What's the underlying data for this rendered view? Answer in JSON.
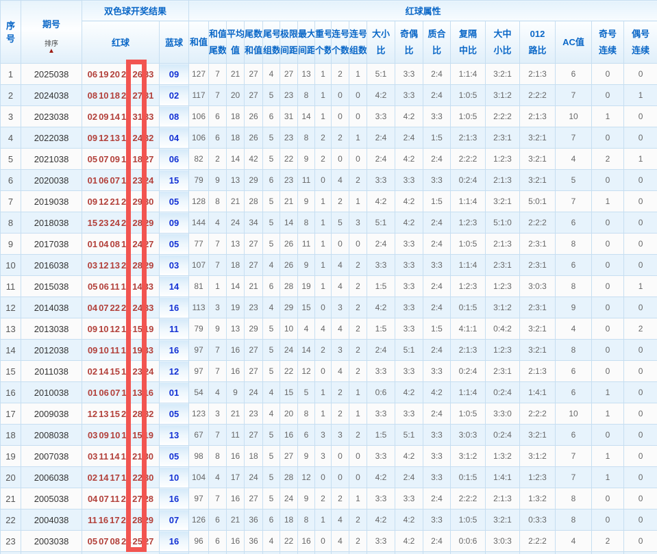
{
  "header": {
    "serial_lines": [
      "序",
      "号"
    ],
    "period_title": "期号",
    "sort_label": "排序",
    "sort_icon": "▲",
    "group_result": "双色球开奖结果",
    "group_attrs": "红球属性",
    "col_red": "红球",
    "col_blue": "蓝球",
    "attr_cols": [
      {
        "key": "sum",
        "l1": "和值",
        "l2": ""
      },
      {
        "key": "sum-tail",
        "l1": "和值",
        "l2": "尾数"
      },
      {
        "key": "average",
        "l1": "平均",
        "l2": "值"
      },
      {
        "key": "tail-sum",
        "l1": "尾数",
        "l2": "和值"
      },
      {
        "key": "tail-groups",
        "l1": "尾号",
        "l2": "组数"
      },
      {
        "key": "limit-span",
        "l1": "极限",
        "l2": "间距"
      },
      {
        "key": "max-gap",
        "l1": "最大",
        "l2": "间距"
      },
      {
        "key": "repeat-count",
        "l1": "重号",
        "l2": "个数"
      },
      {
        "key": "consecutive-count",
        "l1": "连号",
        "l2": "个数"
      },
      {
        "key": "consecutive-groups",
        "l1": "连号",
        "l2": "组数"
      },
      {
        "key": "big-small-ratio",
        "l1": "大小",
        "l2": "比"
      },
      {
        "key": "odd-even-ratio",
        "l1": "奇偶",
        "l2": "比"
      },
      {
        "key": "prime-composite-ratio",
        "l1": "质合",
        "l2": "比"
      },
      {
        "key": "fu-ge-zhong-ratio",
        "l1": "复隔",
        "l2": "中比"
      },
      {
        "key": "big-mid-small-ratio",
        "l1": "大中",
        "l2": "小比"
      },
      {
        "key": "012-road-ratio",
        "l1": "012",
        "l2": "路比"
      },
      {
        "key": "ac-value",
        "l1": "AC值",
        "l2": ""
      },
      {
        "key": "odd-consecutive",
        "l1": "奇号",
        "l2": "连续"
      },
      {
        "key": "even-consecutive",
        "l1": "偶号",
        "l2": "连续"
      }
    ]
  },
  "highlight_color": "#f25450",
  "rows": [
    {
      "seq": "1",
      "period": "2025038",
      "reds": [
        "06",
        "19",
        "20",
        "23",
        "26",
        "33"
      ],
      "blue": "09",
      "vals": [
        "127",
        "7",
        "21",
        "27",
        "4",
        "27",
        "13",
        "1",
        "2",
        "1",
        "5:1",
        "3:3",
        "2:4",
        "1:1:4",
        "3:2:1",
        "2:1:3",
        "6",
        "0",
        "0"
      ]
    },
    {
      "seq": "2",
      "period": "2024038",
      "reds": [
        "08",
        "10",
        "18",
        "23",
        "27",
        "31"
      ],
      "blue": "02",
      "vals": [
        "117",
        "7",
        "20",
        "27",
        "5",
        "23",
        "8",
        "1",
        "0",
        "0",
        "4:2",
        "3:3",
        "2:4",
        "1:0:5",
        "3:1:2",
        "2:2:2",
        "7",
        "0",
        "1"
      ]
    },
    {
      "seq": "3",
      "period": "2023038",
      "reds": [
        "02",
        "09",
        "14",
        "17",
        "31",
        "33"
      ],
      "blue": "08",
      "vals": [
        "106",
        "6",
        "18",
        "26",
        "6",
        "31",
        "14",
        "1",
        "0",
        "0",
        "3:3",
        "4:2",
        "3:3",
        "1:0:5",
        "2:2:2",
        "2:1:3",
        "10",
        "1",
        "0"
      ]
    },
    {
      "seq": "4",
      "period": "2022038",
      "reds": [
        "09",
        "12",
        "13",
        "16",
        "24",
        "32"
      ],
      "blue": "04",
      "vals": [
        "106",
        "6",
        "18",
        "26",
        "5",
        "23",
        "8",
        "2",
        "2",
        "1",
        "2:4",
        "2:4",
        "1:5",
        "2:1:3",
        "2:3:1",
        "3:2:1",
        "7",
        "0",
        "0"
      ]
    },
    {
      "seq": "5",
      "period": "2021038",
      "reds": [
        "05",
        "07",
        "09",
        "16",
        "18",
        "27"
      ],
      "blue": "06",
      "vals": [
        "82",
        "2",
        "14",
        "42",
        "5",
        "22",
        "9",
        "2",
        "0",
        "0",
        "2:4",
        "4:2",
        "2:4",
        "2:2:2",
        "1:2:3",
        "3:2:1",
        "4",
        "2",
        "1"
      ]
    },
    {
      "seq": "6",
      "period": "2020038",
      "reds": [
        "01",
        "06",
        "07",
        "18",
        "23",
        "24"
      ],
      "blue": "15",
      "vals": [
        "79",
        "9",
        "13",
        "29",
        "6",
        "23",
        "11",
        "0",
        "4",
        "2",
        "3:3",
        "3:3",
        "3:3",
        "0:2:4",
        "2:1:3",
        "3:2:1",
        "5",
        "0",
        "0"
      ]
    },
    {
      "seq": "7",
      "period": "2019038",
      "reds": [
        "09",
        "12",
        "21",
        "27",
        "29",
        "30"
      ],
      "blue": "05",
      "vals": [
        "128",
        "8",
        "21",
        "28",
        "5",
        "21",
        "9",
        "1",
        "2",
        "1",
        "4:2",
        "4:2",
        "1:5",
        "1:1:4",
        "3:2:1",
        "5:0:1",
        "7",
        "1",
        "0"
      ]
    },
    {
      "seq": "8",
      "period": "2018038",
      "reds": [
        "15",
        "23",
        "24",
        "25",
        "28",
        "29"
      ],
      "blue": "09",
      "vals": [
        "144",
        "4",
        "24",
        "34",
        "5",
        "14",
        "8",
        "1",
        "5",
        "3",
        "5:1",
        "4:2",
        "2:4",
        "1:2:3",
        "5:1:0",
        "2:2:2",
        "6",
        "0",
        "0"
      ]
    },
    {
      "seq": "9",
      "period": "2017038",
      "reds": [
        "01",
        "04",
        "08",
        "13",
        "24",
        "27"
      ],
      "blue": "05",
      "vals": [
        "77",
        "7",
        "13",
        "27",
        "5",
        "26",
        "11",
        "1",
        "0",
        "0",
        "2:4",
        "3:3",
        "2:4",
        "1:0:5",
        "2:1:3",
        "2:3:1",
        "8",
        "0",
        "0"
      ]
    },
    {
      "seq": "10",
      "period": "2016038",
      "reds": [
        "03",
        "12",
        "13",
        "22",
        "28",
        "29"
      ],
      "blue": "03",
      "vals": [
        "107",
        "7",
        "18",
        "27",
        "4",
        "26",
        "9",
        "1",
        "4",
        "2",
        "3:3",
        "3:3",
        "3:3",
        "1:1:4",
        "2:3:1",
        "2:3:1",
        "6",
        "0",
        "0"
      ]
    },
    {
      "seq": "11",
      "period": "2015038",
      "reds": [
        "05",
        "06",
        "11",
        "12",
        "14",
        "33"
      ],
      "blue": "14",
      "vals": [
        "81",
        "1",
        "14",
        "21",
        "6",
        "28",
        "19",
        "1",
        "4",
        "2",
        "1:5",
        "3:3",
        "2:4",
        "1:2:3",
        "1:2:3",
        "3:0:3",
        "8",
        "0",
        "1"
      ]
    },
    {
      "seq": "12",
      "period": "2014038",
      "reds": [
        "04",
        "07",
        "22",
        "23",
        "24",
        "33"
      ],
      "blue": "16",
      "vals": [
        "113",
        "3",
        "19",
        "23",
        "4",
        "29",
        "15",
        "0",
        "3",
        "2",
        "4:2",
        "3:3",
        "2:4",
        "0:1:5",
        "3:1:2",
        "2:3:1",
        "9",
        "0",
        "0"
      ]
    },
    {
      "seq": "13",
      "period": "2013038",
      "reds": [
        "09",
        "10",
        "12",
        "14",
        "15",
        "19"
      ],
      "blue": "11",
      "vals": [
        "79",
        "9",
        "13",
        "29",
        "5",
        "10",
        "4",
        "4",
        "4",
        "2",
        "1:5",
        "3:3",
        "1:5",
        "4:1:1",
        "0:4:2",
        "3:2:1",
        "4",
        "0",
        "2"
      ]
    },
    {
      "seq": "14",
      "period": "2012038",
      "reds": [
        "09",
        "10",
        "11",
        "15",
        "19",
        "33"
      ],
      "blue": "16",
      "vals": [
        "97",
        "7",
        "16",
        "27",
        "5",
        "24",
        "14",
        "2",
        "3",
        "2",
        "2:4",
        "5:1",
        "2:4",
        "2:1:3",
        "1:2:3",
        "3:2:1",
        "8",
        "0",
        "0"
      ]
    },
    {
      "seq": "15",
      "period": "2011038",
      "reds": [
        "02",
        "14",
        "15",
        "19",
        "23",
        "24"
      ],
      "blue": "12",
      "vals": [
        "97",
        "7",
        "16",
        "27",
        "5",
        "22",
        "12",
        "0",
        "4",
        "2",
        "3:3",
        "3:3",
        "3:3",
        "0:2:4",
        "2:3:1",
        "2:1:3",
        "6",
        "0",
        "0"
      ]
    },
    {
      "seq": "16",
      "period": "2010038",
      "reds": [
        "01",
        "06",
        "07",
        "11",
        "13",
        "16"
      ],
      "blue": "01",
      "vals": [
        "54",
        "4",
        "9",
        "24",
        "4",
        "15",
        "5",
        "1",
        "2",
        "1",
        "0:6",
        "4:2",
        "4:2",
        "1:1:4",
        "0:2:4",
        "1:4:1",
        "6",
        "1",
        "0"
      ]
    },
    {
      "seq": "17",
      "period": "2009038",
      "reds": [
        "12",
        "13",
        "15",
        "23",
        "28",
        "32"
      ],
      "blue": "05",
      "vals": [
        "123",
        "3",
        "21",
        "23",
        "4",
        "20",
        "8",
        "1",
        "2",
        "1",
        "3:3",
        "3:3",
        "2:4",
        "1:0:5",
        "3:3:0",
        "2:2:2",
        "10",
        "1",
        "0"
      ]
    },
    {
      "seq": "18",
      "period": "2008038",
      "reds": [
        "03",
        "09",
        "10",
        "11",
        "15",
        "19"
      ],
      "blue": "13",
      "vals": [
        "67",
        "7",
        "11",
        "27",
        "5",
        "16",
        "6",
        "3",
        "3",
        "2",
        "1:5",
        "5:1",
        "3:3",
        "3:0:3",
        "0:2:4",
        "3:2:1",
        "6",
        "0",
        "0"
      ]
    },
    {
      "seq": "19",
      "period": "2007038",
      "reds": [
        "03",
        "11",
        "14",
        "19",
        "21",
        "30"
      ],
      "blue": "05",
      "vals": [
        "98",
        "8",
        "16",
        "18",
        "5",
        "27",
        "9",
        "3",
        "0",
        "0",
        "3:3",
        "4:2",
        "3:3",
        "3:1:2",
        "1:3:2",
        "3:1:2",
        "7",
        "1",
        "0"
      ]
    },
    {
      "seq": "20",
      "period": "2006038",
      "reds": [
        "02",
        "14",
        "17",
        "19",
        "22",
        "30"
      ],
      "blue": "10",
      "vals": [
        "104",
        "4",
        "17",
        "24",
        "5",
        "28",
        "12",
        "0",
        "0",
        "0",
        "4:2",
        "2:4",
        "3:3",
        "0:1:5",
        "1:4:1",
        "1:2:3",
        "7",
        "1",
        "0"
      ]
    },
    {
      "seq": "21",
      "period": "2005038",
      "reds": [
        "04",
        "07",
        "11",
        "20",
        "27",
        "28"
      ],
      "blue": "16",
      "vals": [
        "97",
        "7",
        "16",
        "27",
        "5",
        "24",
        "9",
        "2",
        "2",
        "1",
        "3:3",
        "3:3",
        "2:4",
        "2:2:2",
        "2:1:3",
        "1:3:2",
        "8",
        "0",
        "0"
      ]
    },
    {
      "seq": "22",
      "period": "2004038",
      "reds": [
        "11",
        "16",
        "17",
        "25",
        "28",
        "29"
      ],
      "blue": "07",
      "vals": [
        "126",
        "6",
        "21",
        "36",
        "6",
        "18",
        "8",
        "1",
        "4",
        "2",
        "4:2",
        "4:2",
        "3:3",
        "1:0:5",
        "3:2:1",
        "0:3:3",
        "8",
        "0",
        "0"
      ]
    },
    {
      "seq": "23",
      "period": "2003038",
      "reds": [
        "05",
        "07",
        "08",
        "24",
        "25",
        "27"
      ],
      "blue": "16",
      "vals": [
        "96",
        "6",
        "16",
        "36",
        "4",
        "22",
        "16",
        "0",
        "4",
        "2",
        "3:3",
        "4:2",
        "2:4",
        "0:0:6",
        "3:0:3",
        "2:2:2",
        "4",
        "2",
        "0"
      ]
    }
  ]
}
